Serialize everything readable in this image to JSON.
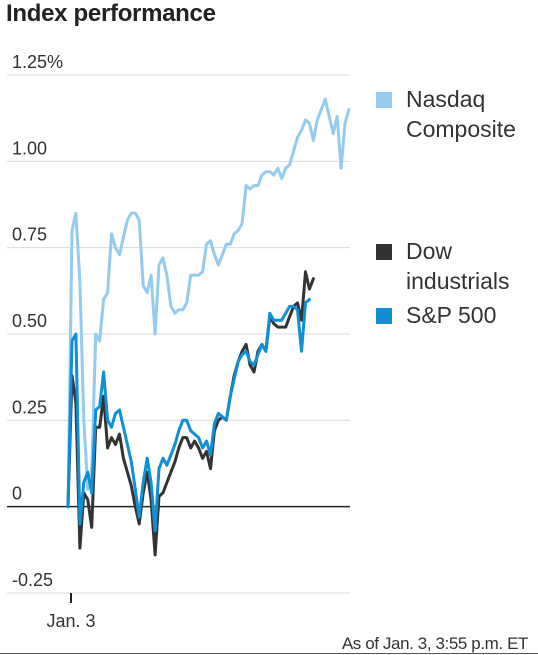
{
  "title": "Index performance",
  "footnote": "As of Jan. 3, 3:55 p.m. ET",
  "chart_data": {
    "type": "line",
    "title": "Index performance",
    "xlabel": "",
    "ylabel": "",
    "x_tick_labels": [
      "Jan. 3"
    ],
    "y_ticks": [
      {
        "value": 1.25,
        "label": "1.25%"
      },
      {
        "value": 1.0,
        "label": "1.00"
      },
      {
        "value": 0.75,
        "label": "0.75"
      },
      {
        "value": 0.5,
        "label": "0.50"
      },
      {
        "value": 0.25,
        "label": "0.25"
      },
      {
        "value": 0,
        "label": "0"
      },
      {
        "value": -0.25,
        "label": "-0.25"
      }
    ],
    "ylim": [
      -0.25,
      1.25
    ],
    "x_range": [
      0,
      71
    ],
    "grid": true,
    "legend_position": "right",
    "series": [
      {
        "name": "Nasdaq Composite",
        "color": "#95cbee",
        "values": [
          0,
          0.8,
          0.85,
          0.65,
          0.25,
          0.05,
          0.1,
          0.5,
          0.48,
          0.6,
          0.62,
          0.79,
          0.75,
          0.73,
          0.78,
          0.83,
          0.85,
          0.85,
          0.83,
          0.64,
          0.62,
          0.67,
          0.5,
          0.7,
          0.72,
          0.67,
          0.58,
          0.56,
          0.57,
          0.57,
          0.59,
          0.67,
          0.67,
          0.67,
          0.68,
          0.76,
          0.77,
          0.73,
          0.7,
          0.73,
          0.76,
          0.76,
          0.79,
          0.8,
          0.82,
          0.93,
          0.92,
          0.93,
          0.93,
          0.96,
          0.97,
          0.97,
          0.96,
          0.98,
          0.95,
          0.98,
          0.99,
          1.03,
          1.07,
          1.09,
          1.12,
          1.11,
          1.06,
          1.12,
          1.15,
          1.18,
          1.13,
          1.08,
          1.13,
          0.98,
          1.11,
          1.15
        ]
      },
      {
        "name": "Dow industrials",
        "color": "#333333",
        "values": [
          0,
          0.38,
          0.3,
          -0.12,
          0.04,
          0.02,
          -0.06,
          0.23,
          0.23,
          0.32,
          0.17,
          0.2,
          0.18,
          0.21,
          0.14,
          0.1,
          0.06,
          0.0,
          -0.05,
          0.04,
          0.1,
          0.02,
          -0.14,
          0.03,
          0.04,
          0.07,
          0.1,
          0.13,
          0.17,
          0.2,
          0.2,
          0.17,
          0.19,
          0.17,
          0.14,
          0.16,
          0.11,
          0.22,
          0.25,
          0.26,
          0.25,
          0.32,
          0.38,
          0.42,
          0.45,
          0.47,
          0.41,
          0.39,
          0.45,
          0.47,
          0.45,
          0.55,
          0.53,
          0.52,
          0.52,
          0.52,
          0.55,
          0.58,
          0.59,
          0.54,
          0.68,
          0.63,
          0.66
        ]
      },
      {
        "name": "S&P 500",
        "color": "#0f8fd4",
        "values": [
          0,
          0.48,
          0.5,
          -0.05,
          0.07,
          0.1,
          0.04,
          0.28,
          0.29,
          0.39,
          0.25,
          0.23,
          0.27,
          0.28,
          0.23,
          0.18,
          0.13,
          0.05,
          -0.03,
          0.07,
          0.14,
          0.07,
          -0.07,
          0.11,
          0.14,
          0.12,
          0.15,
          0.18,
          0.22,
          0.25,
          0.25,
          0.22,
          0.21,
          0.2,
          0.17,
          0.19,
          0.15,
          0.24,
          0.27,
          0.26,
          0.25,
          0.32,
          0.37,
          0.42,
          0.44,
          0.45,
          0.42,
          0.41,
          0.44,
          0.47,
          0.45,
          0.56,
          0.54,
          0.54,
          0.54,
          0.56,
          0.58,
          0.58,
          0.57,
          0.45,
          0.59,
          0.6
        ]
      }
    ]
  }
}
